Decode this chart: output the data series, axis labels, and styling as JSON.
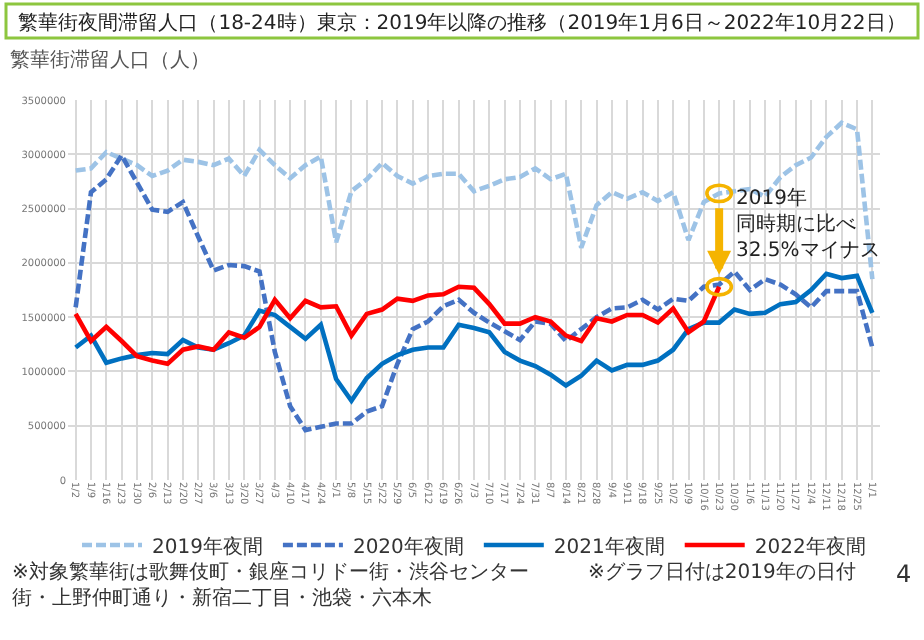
{
  "chart_data": {
    "type": "line",
    "title": "繁華街夜間滞留人口（18-24時）東京：2019年以降の推移（2019年1月6日～2022年10月22日）",
    "ylabel": "繁華街滞留人口（人）",
    "categories": [
      "1/2",
      "1/9",
      "1/16",
      "1/23",
      "1/30",
      "2/6",
      "2/13",
      "2/20",
      "2/27",
      "3/6",
      "3/13",
      "3/20",
      "3/27",
      "4/3",
      "4/10",
      "4/17",
      "4/24",
      "5/1",
      "5/8",
      "5/15",
      "5/22",
      "5/29",
      "6/5",
      "6/12",
      "6/19",
      "6/26",
      "7/3",
      "7/10",
      "7/17",
      "7/24",
      "7/31",
      "8/7",
      "8/14",
      "8/21",
      "8/28",
      "9/4",
      "9/11",
      "9/18",
      "9/25",
      "10/2",
      "10/9",
      "10/16",
      "10/23",
      "10/30",
      "11/6",
      "11/13",
      "11/20",
      "11/27",
      "12/4",
      "12/11",
      "12/18",
      "12/25",
      "1/1"
    ],
    "series": [
      {
        "name": "2019年夜間",
        "color": "#9dc3e6",
        "line_style": "dashed",
        "values": [
          2850000,
          2870000,
          3020000,
          2960000,
          2900000,
          2800000,
          2850000,
          2950000,
          2930000,
          2900000,
          2960000,
          2800000,
          3040000,
          2900000,
          2780000,
          2900000,
          2980000,
          2190000,
          2660000,
          2770000,
          2920000,
          2800000,
          2730000,
          2800000,
          2820000,
          2820000,
          2660000,
          2710000,
          2770000,
          2790000,
          2870000,
          2770000,
          2820000,
          2140000,
          2530000,
          2650000,
          2590000,
          2650000,
          2570000,
          2650000,
          2210000,
          2560000,
          2640000,
          2660000,
          2680000,
          2610000,
          2790000,
          2900000,
          2970000,
          3160000,
          3290000,
          3230000,
          1850000
        ]
      },
      {
        "name": "2020年夜間",
        "color": "#4472c4",
        "line_style": "dashed",
        "values": [
          1590000,
          2650000,
          2770000,
          2990000,
          2740000,
          2490000,
          2470000,
          2560000,
          2240000,
          1930000,
          1980000,
          1970000,
          1920000,
          1180000,
          680000,
          460000,
          490000,
          520000,
          520000,
          630000,
          680000,
          1070000,
          1390000,
          1460000,
          1600000,
          1660000,
          1540000,
          1450000,
          1370000,
          1290000,
          1460000,
          1440000,
          1280000,
          1390000,
          1500000,
          1580000,
          1590000,
          1660000,
          1570000,
          1670000,
          1650000,
          1780000,
          1800000,
          1920000,
          1750000,
          1850000,
          1800000,
          1710000,
          1590000,
          1740000,
          1740000,
          1740000,
          1220000
        ]
      },
      {
        "name": "2021年夜間",
        "color": "#0070c0",
        "line_style": "solid",
        "values": [
          1220000,
          1330000,
          1080000,
          1120000,
          1150000,
          1170000,
          1160000,
          1290000,
          1220000,
          1200000,
          1260000,
          1330000,
          1560000,
          1520000,
          1410000,
          1300000,
          1430000,
          930000,
          730000,
          940000,
          1070000,
          1150000,
          1200000,
          1220000,
          1220000,
          1430000,
          1400000,
          1360000,
          1180000,
          1100000,
          1050000,
          970000,
          870000,
          960000,
          1100000,
          1010000,
          1060000,
          1060000,
          1100000,
          1200000,
          1390000,
          1450000,
          1450000,
          1570000,
          1530000,
          1540000,
          1620000,
          1640000,
          1750000,
          1900000,
          1860000,
          1880000,
          1540000
        ]
      },
      {
        "name": "2022年夜間",
        "color": "#ff0000",
        "line_style": "solid",
        "values": [
          1530000,
          1280000,
          1410000,
          1280000,
          1140000,
          1100000,
          1070000,
          1200000,
          1230000,
          1200000,
          1360000,
          1310000,
          1410000,
          1660000,
          1490000,
          1650000,
          1590000,
          1600000,
          1330000,
          1530000,
          1570000,
          1670000,
          1650000,
          1700000,
          1710000,
          1780000,
          1770000,
          1620000,
          1440000,
          1440000,
          1500000,
          1460000,
          1330000,
          1280000,
          1490000,
          1460000,
          1520000,
          1520000,
          1450000,
          1580000,
          1360000,
          1460000,
          1780000,
          null,
          null,
          null,
          null,
          null,
          null,
          null,
          null,
          null,
          null
        ]
      }
    ],
    "ylim": [
      0,
      3500000
    ],
    "yticks": [
      0,
      500000,
      1000000,
      1500000,
      2000000,
      2500000,
      3000000,
      3500000
    ],
    "grid": true,
    "legend": "bottom",
    "marker": "none",
    "annotations": [
      {
        "text": "2019年",
        "x": "10/23",
        "y": 2640000
      },
      {
        "text": "同時期に比べ",
        "x": "10/23",
        "y": 2640000
      },
      {
        "text": "32.5%マイナス",
        "x": "10/23",
        "y": 1780000
      },
      "※対象繁華街は歌舞伎町・銀座コリドー街・渋谷センター街・上野仲町通り・新宿二丁目・池袋・六本木",
      "※グラフ日付は2019年の日付",
      "4"
    ]
  }
}
